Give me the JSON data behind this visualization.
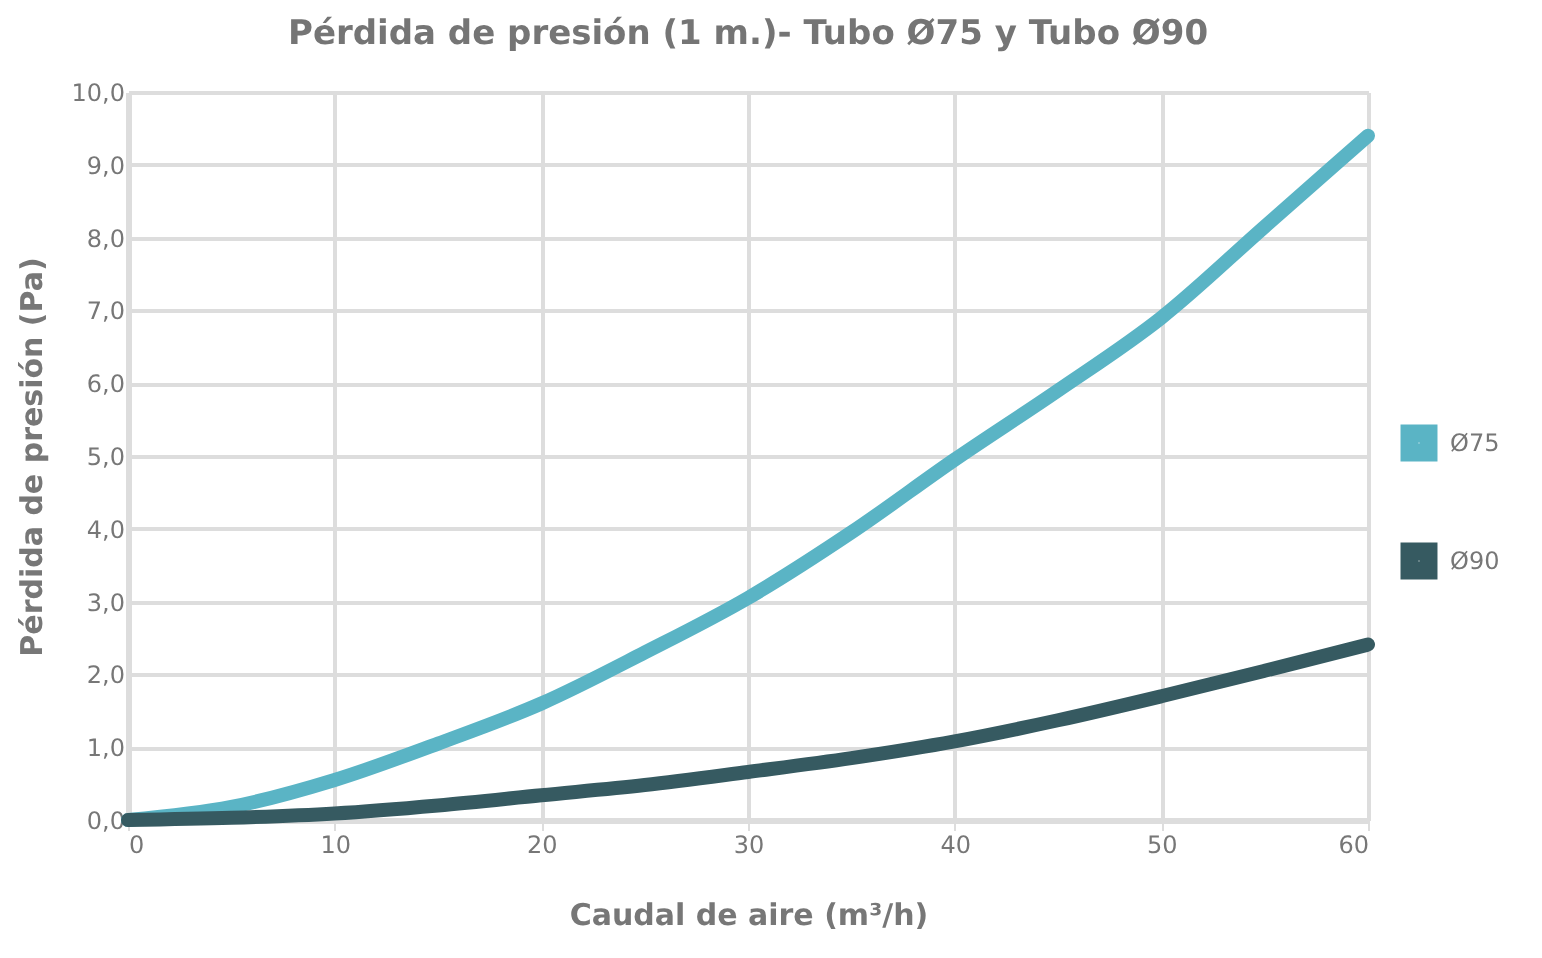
{
  "chart_data": {
    "type": "line",
    "title": "Pérdida de presión (1 m.)- Tubo Ø75 y Tubo Ø90",
    "xlabel": "Caudal de aire (m³/h)",
    "ylabel": "Pérdida de presión (Pa)",
    "x": [
      0,
      5,
      10,
      15,
      20,
      25,
      30,
      35,
      40,
      45,
      50,
      55,
      60
    ],
    "series": [
      {
        "name": "Ø75",
        "color": "#5ab4c5",
        "values": [
          0,
          0.18,
          0.55,
          1.05,
          1.6,
          2.3,
          3.05,
          3.95,
          4.95,
          5.9,
          6.9,
          8.15,
          9.4
        ]
      },
      {
        "name": "Ø90",
        "color": "#365a61",
        "values": [
          0,
          0.03,
          0.09,
          0.2,
          0.34,
          0.48,
          0.66,
          0.85,
          1.08,
          1.37,
          1.7,
          2.05,
          2.41
        ]
      }
    ],
    "xlim": [
      0,
      60
    ],
    "xticks": [
      0,
      10,
      20,
      30,
      40,
      50,
      60
    ],
    "ylim": [
      0,
      10
    ],
    "yticks": [
      {
        "value": 0,
        "label": "0,0"
      },
      {
        "value": 1,
        "label": "1,0"
      },
      {
        "value": 2,
        "label": "2,0"
      },
      {
        "value": 3,
        "label": "3,0"
      },
      {
        "value": 4,
        "label": "4,0"
      },
      {
        "value": 5,
        "label": "5,0"
      },
      {
        "value": 6,
        "label": "6,0"
      },
      {
        "value": 7,
        "label": "7,0"
      },
      {
        "value": 8,
        "label": "8,0"
      },
      {
        "value": 9,
        "label": "9,0"
      },
      {
        "value": 10,
        "label": "10,0"
      }
    ],
    "grid": true,
    "legend": "right",
    "marker": "none",
    "line_style": "solid"
  }
}
